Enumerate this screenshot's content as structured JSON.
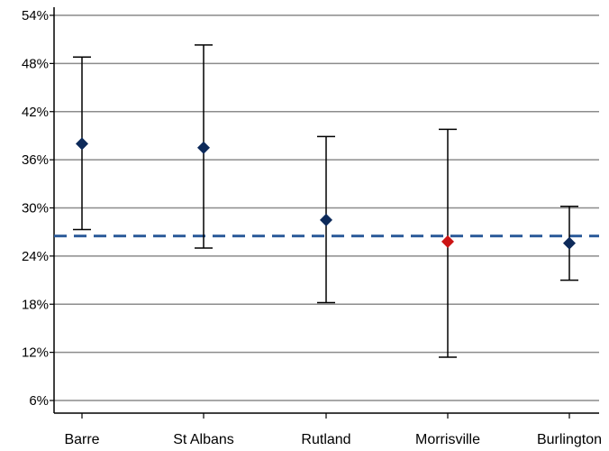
{
  "chart_data": {
    "type": "scatter",
    "title": "",
    "xlabel": "",
    "ylabel": "",
    "ylim": [
      4,
      56
    ],
    "yticks": [
      6,
      12,
      18,
      24,
      30,
      36,
      42,
      48,
      54
    ],
    "ytick_labels": [
      "6%",
      "12%",
      "18%",
      "24%",
      "30%",
      "36%",
      "42%",
      "48%",
      "54%"
    ],
    "grid": true,
    "legend": "none",
    "categories": [
      "Barre",
      "St Albans",
      "Rutland",
      "Morrisville",
      "Burlington"
    ],
    "values": [
      38.0,
      37.5,
      28.5,
      25.8,
      25.6
    ],
    "error_low": [
      27.3,
      25.0,
      18.2,
      11.4,
      21.0
    ],
    "error_high": [
      48.8,
      50.3,
      38.9,
      39.8,
      30.2
    ],
    "point_colors": [
      "#0d2a5a",
      "#0d2a5a",
      "#0d2a5a",
      "#cc1414",
      "#0d2a5a"
    ],
    "reference_line": {
      "value": 26.5,
      "color": "#2e5d9b",
      "style": "dashed"
    },
    "colors": {
      "grid": "#8c8c8c",
      "axis": "#000000",
      "errorbar": "#000000"
    }
  }
}
